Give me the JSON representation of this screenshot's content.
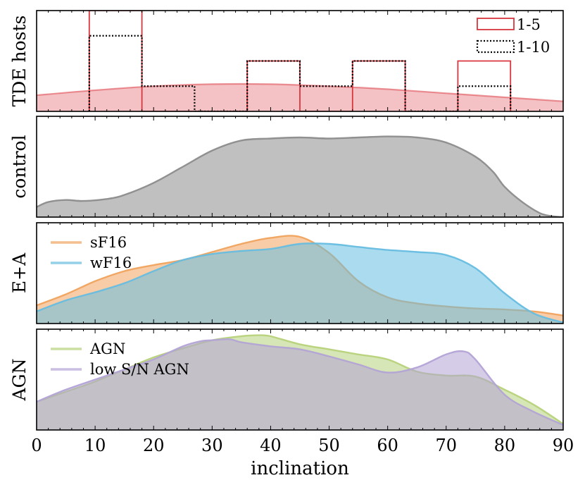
{
  "chart_data": {
    "type": "area",
    "xlabel": "inclination",
    "xlim": [
      0,
      90
    ],
    "xticks": [
      0,
      10,
      20,
      30,
      40,
      50,
      60,
      70,
      80,
      90
    ],
    "panels": [
      {
        "id": "tde",
        "ylabel": "TDE hosts",
        "ylim": [
          0,
          1
        ],
        "kde": {
          "color": "#d9363e",
          "x": [
            0,
            10,
            20,
            30,
            40,
            50,
            60,
            70,
            80,
            90
          ],
          "y": [
            0.16,
            0.21,
            0.25,
            0.27,
            0.27,
            0.25,
            0.22,
            0.18,
            0.14,
            0.1
          ]
        },
        "histograms": [
          {
            "name": "1-5",
            "style": "solid",
            "color": "#d9363e",
            "bin_edges": [
              9,
              18,
              27,
              36,
              45,
              54,
              63,
              72,
              81
            ],
            "counts": [
              1.0,
              0,
              0,
              0.5,
              0,
              0.5,
              0,
              0.5
            ]
          },
          {
            "name": "1-10",
            "style": "dotted",
            "color": "#000000",
            "bin_edges": [
              9,
              18,
              27,
              36,
              45,
              54,
              63,
              72,
              81
            ],
            "counts": [
              0.75,
              0.25,
              0,
              0.5,
              0.25,
              0.5,
              0,
              0.25
            ]
          }
        ],
        "legend": {
          "position": "top-right",
          "entries": [
            "1-5",
            "1-10"
          ]
        }
      },
      {
        "id": "control",
        "ylabel": "control",
        "ylim": [
          0,
          1
        ],
        "series": [
          {
            "name": "control",
            "color": "#8c8c8c",
            "x": [
              0,
              2,
              5,
              8,
              12,
              15,
              20,
              25,
              30,
              35,
              40,
              45,
              50,
              55,
              60,
              65,
              70,
              75,
              78,
              80,
              83,
              86,
              88,
              90
            ],
            "y": [
              0.1,
              0.15,
              0.17,
              0.16,
              0.18,
              0.22,
              0.34,
              0.5,
              0.66,
              0.76,
              0.78,
              0.79,
              0.78,
              0.79,
              0.8,
              0.79,
              0.74,
              0.6,
              0.45,
              0.3,
              0.15,
              0.04,
              0.01,
              0.0
            ]
          }
        ]
      },
      {
        "id": "ea",
        "ylabel": "E+A",
        "ylim": [
          0,
          1
        ],
        "legend": {
          "position": "top-left",
          "entries": [
            "sF16",
            "wF16"
          ]
        },
        "series": [
          {
            "name": "sF16",
            "color": "#f0a35e",
            "x": [
              0,
              5,
              10,
              15,
              20,
              25,
              30,
              35,
              40,
              45,
              50,
              55,
              60,
              65,
              70,
              75,
              80,
              85,
              90
            ],
            "y": [
              0.18,
              0.29,
              0.42,
              0.52,
              0.58,
              0.63,
              0.71,
              0.79,
              0.85,
              0.86,
              0.7,
              0.42,
              0.26,
              0.2,
              0.17,
              0.15,
              0.14,
              0.12,
              0.08
            ]
          },
          {
            "name": "wF16",
            "color": "#66bde0",
            "x": [
              0,
              5,
              10,
              15,
              20,
              25,
              30,
              35,
              40,
              45,
              50,
              55,
              60,
              65,
              70,
              75,
              80,
              85,
              90
            ],
            "y": [
              0.12,
              0.23,
              0.31,
              0.4,
              0.52,
              0.63,
              0.69,
              0.72,
              0.74,
              0.79,
              0.79,
              0.76,
              0.73,
              0.71,
              0.68,
              0.55,
              0.3,
              0.1,
              0.01
            ]
          }
        ]
      },
      {
        "id": "agn",
        "ylabel": "AGN",
        "ylim": [
          0,
          1
        ],
        "legend": {
          "position": "top-left",
          "entries": [
            "AGN",
            "low S/N AGN"
          ]
        },
        "series": [
          {
            "name": "AGN",
            "color": "#b7d27a",
            "x": [
              0,
              5,
              10,
              15,
              20,
              25,
              30,
              35,
              38,
              40,
              45,
              50,
              55,
              60,
              65,
              70,
              75,
              80,
              85,
              90
            ],
            "y": [
              0.28,
              0.38,
              0.48,
              0.6,
              0.72,
              0.81,
              0.89,
              0.93,
              0.94,
              0.93,
              0.85,
              0.8,
              0.75,
              0.7,
              0.58,
              0.54,
              0.53,
              0.4,
              0.25,
              0.06
            ]
          },
          {
            "name": "low S/N AGN",
            "color": "#b3a3d6",
            "x": [
              0,
              5,
              10,
              15,
              20,
              25,
              28,
              30,
              33,
              35,
              40,
              45,
              50,
              55,
              60,
              65,
              70,
              73,
              75,
              80,
              85,
              90
            ],
            "y": [
              0.28,
              0.4,
              0.5,
              0.6,
              0.7,
              0.83,
              0.88,
              0.89,
              0.9,
              0.87,
              0.83,
              0.8,
              0.73,
              0.65,
              0.57,
              0.62,
              0.75,
              0.78,
              0.7,
              0.35,
              0.18,
              0.05
            ]
          }
        ]
      }
    ]
  }
}
